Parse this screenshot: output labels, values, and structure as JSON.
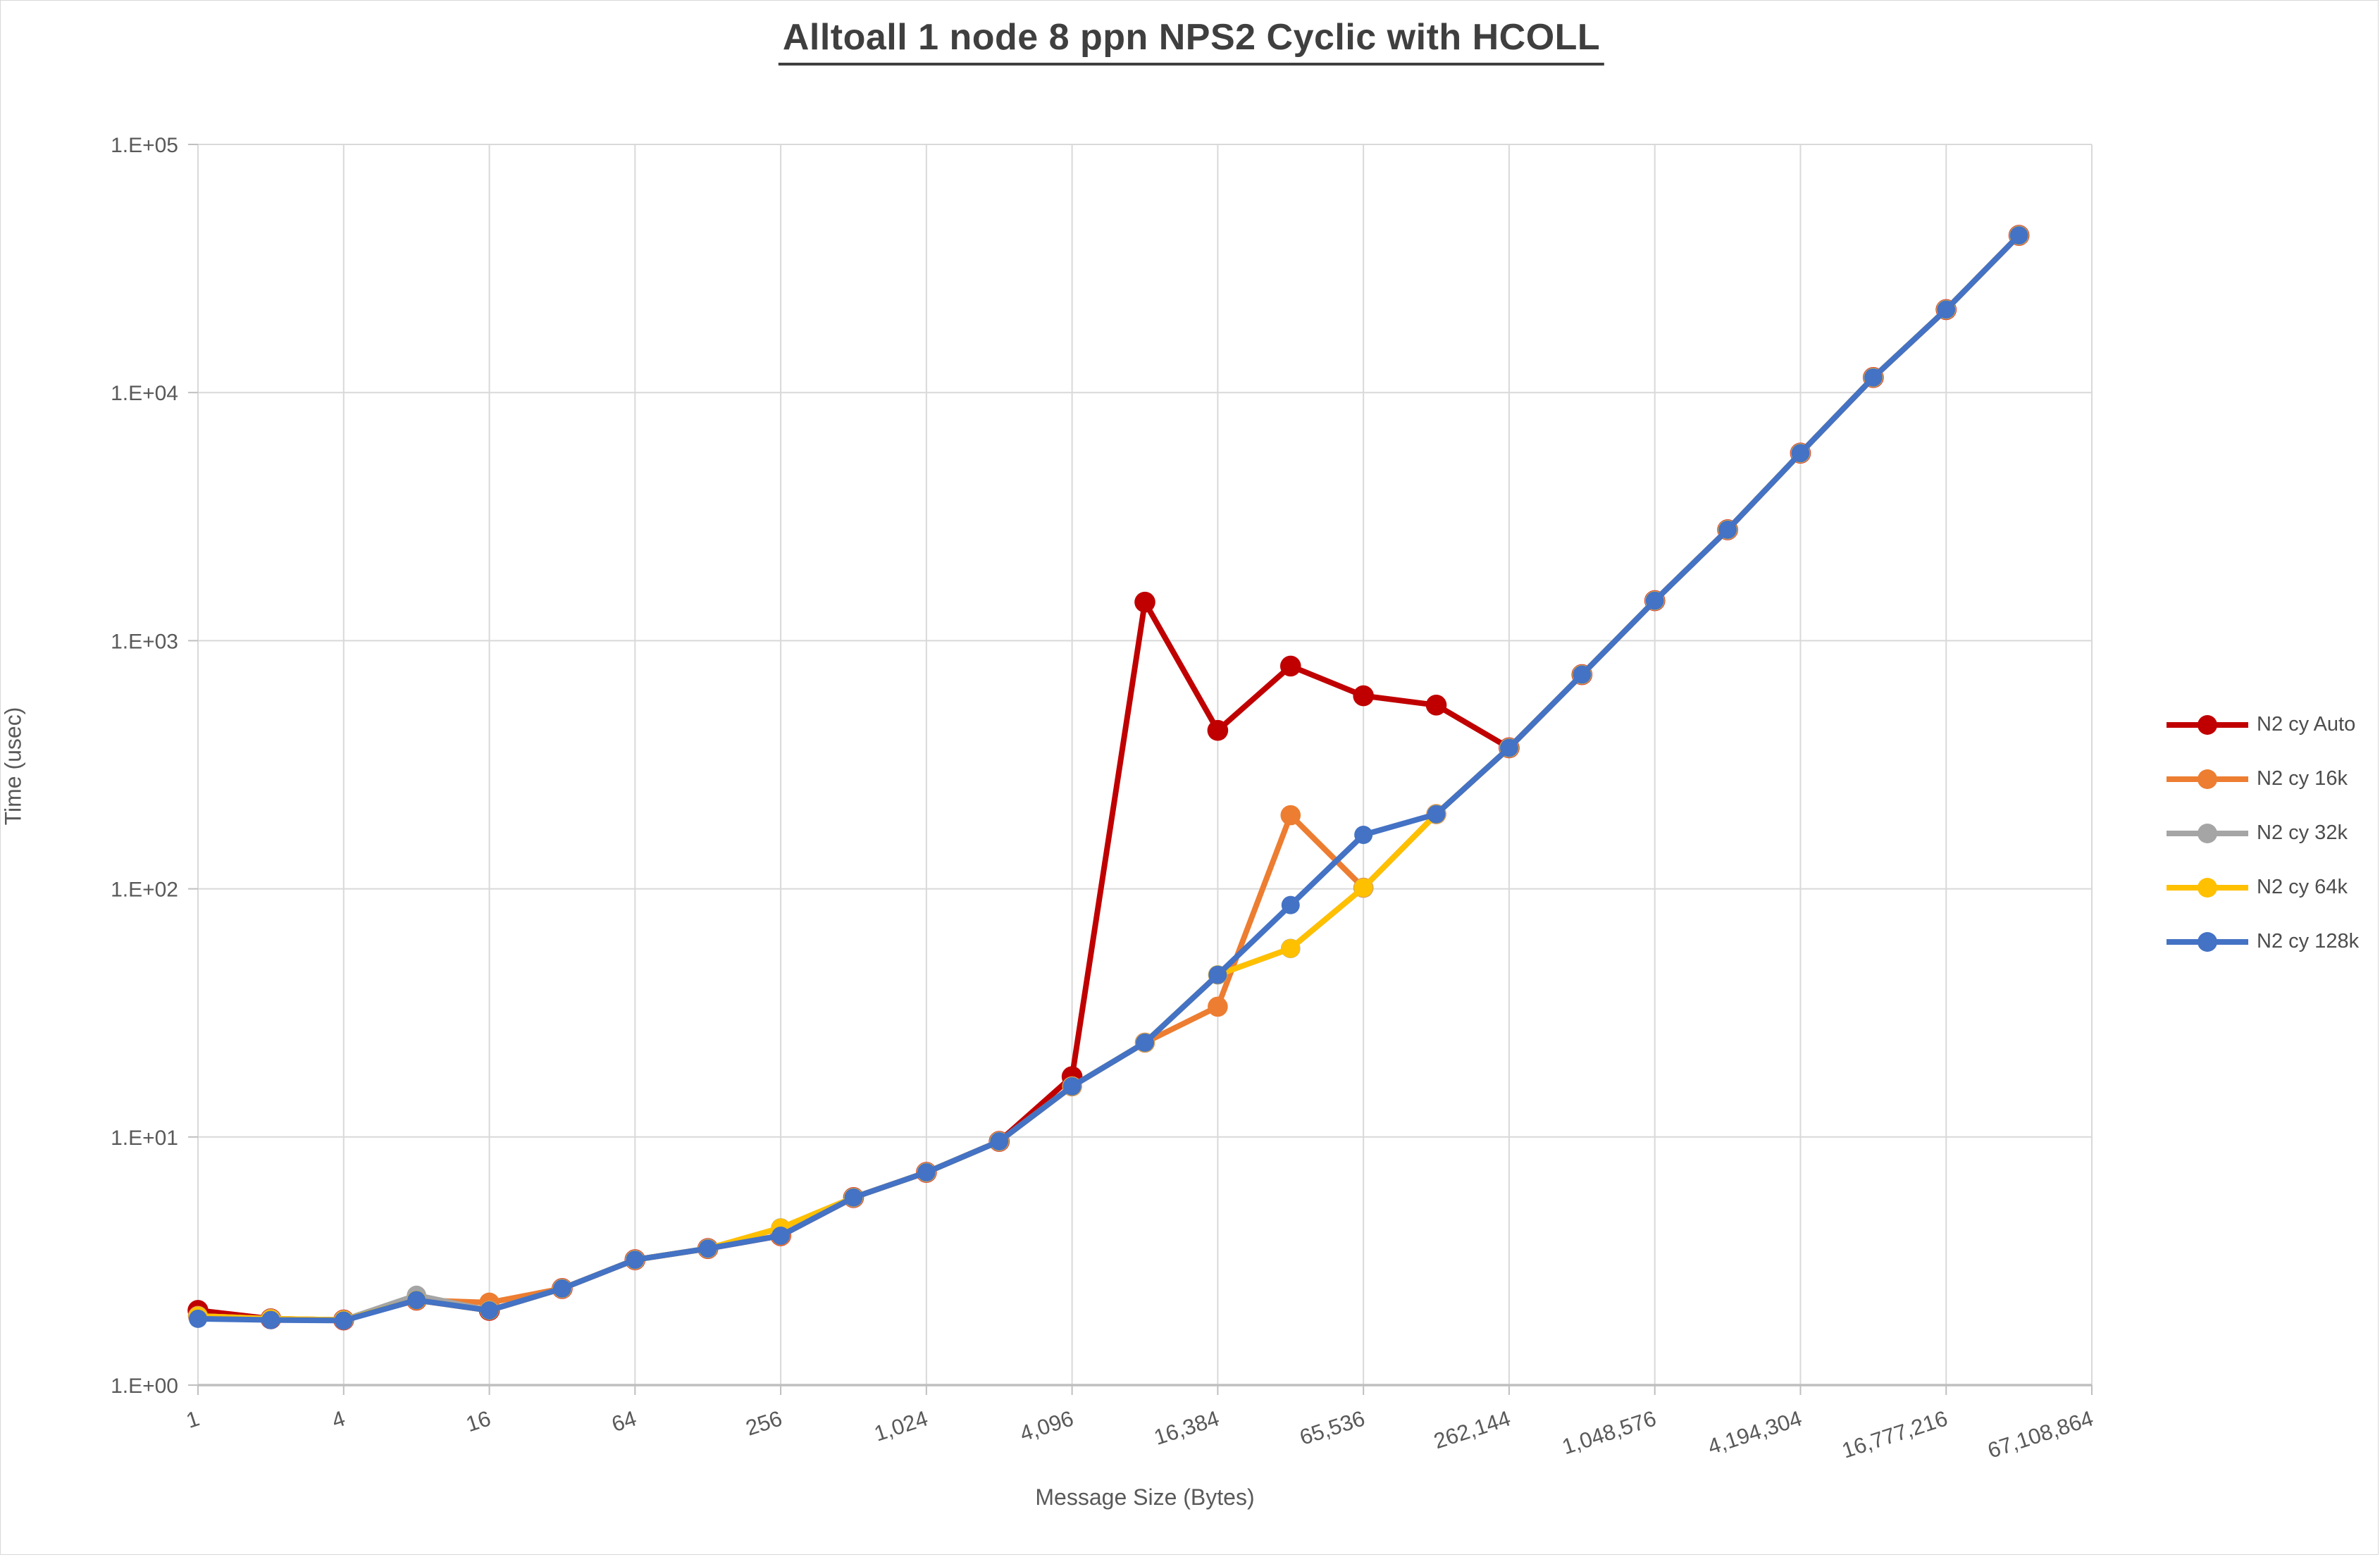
{
  "title": "Alltoall 1 node 8 ppn NPS2 Cyclic with HCOLL",
  "axes": {
    "x_title": "Message Size (Bytes)",
    "y_title": "Time (usec)"
  },
  "chart_data": {
    "type": "line",
    "title": "Alltoall 1 node 8 ppn NPS2 Cyclic with HCOLL",
    "xlabel": "Message Size (Bytes)",
    "ylabel": "Time (usec)",
    "x_scale": "log2",
    "y_scale": "log10",
    "xlim": [
      1,
      67108864
    ],
    "ylim": [
      1,
      100000
    ],
    "grid": true,
    "legend_position": "right",
    "x_tick_values": [
      1,
      4,
      16,
      64,
      256,
      1024,
      4096,
      16384,
      65536,
      262144,
      1048576,
      4194304,
      16777216,
      67108864
    ],
    "x_tick_labels": [
      "1",
      "4",
      "16",
      "64",
      "256",
      "1,024",
      "4,096",
      "16,384",
      "65,536",
      "262,144",
      "1,048,576",
      "4,194,304",
      "16,777,216",
      "67,108,864"
    ],
    "y_tick_values": [
      1,
      10,
      100,
      1000,
      10000,
      100000
    ],
    "y_tick_labels": [
      "1.E+00",
      "1.E+01",
      "1.E+02",
      "1.E+03",
      "1.E+04",
      "1.E+05"
    ],
    "x": [
      1,
      2,
      4,
      8,
      16,
      32,
      64,
      128,
      256,
      512,
      1024,
      2048,
      4096,
      8192,
      16384,
      32768,
      65536,
      131072,
      262144,
      524288,
      1048576,
      2097152,
      4194304,
      8388608,
      16777216,
      33554432
    ],
    "series": [
      {
        "name": "N2 cy Auto",
        "color": "#C00000",
        "values": [
          2.0,
          1.85,
          1.83,
          2.2,
          2.0,
          2.45,
          3.2,
          3.55,
          4.0,
          5.7,
          7.2,
          9.6,
          17.5,
          1430,
          435,
          790,
          600,
          550,
          370,
          730,
          1450,
          2800,
          5700,
          11500,
          21600,
          43000
        ]
      },
      {
        "name": "N2 cy 16k",
        "color": "#ED7D31",
        "values": [
          1.9,
          1.85,
          1.83,
          2.2,
          2.15,
          2.45,
          3.2,
          3.55,
          4.0,
          5.7,
          7.2,
          9.6,
          16,
          24,
          33.5,
          198,
          101,
          200,
          370,
          730,
          1450,
          2800,
          5700,
          11500,
          21600,
          43000
        ]
      },
      {
        "name": "N2 cy 32k",
        "color": "#A5A5A5",
        "values": [
          1.9,
          1.85,
          1.83,
          2.3,
          2.0,
          2.45,
          3.2,
          3.55,
          4.3,
          5.7,
          7.2,
          9.6,
          16,
          24,
          45,
          57.5,
          101,
          200,
          370,
          730,
          1450,
          2800,
          5700,
          11500,
          21600,
          43000
        ]
      },
      {
        "name": "N2 cy 64k",
        "color": "#FFC000",
        "values": [
          1.9,
          1.85,
          1.83,
          2.2,
          2.0,
          2.45,
          3.2,
          3.55,
          4.3,
          5.7,
          7.2,
          9.6,
          16,
          24,
          45,
          57.5,
          101,
          200,
          370,
          730,
          1450,
          2800,
          5700,
          11500,
          21600,
          43000
        ]
      },
      {
        "name": "N2 cy 128k",
        "color": "#4472C4",
        "values": [
          1.85,
          1.83,
          1.82,
          2.2,
          2.0,
          2.45,
          3.2,
          3.55,
          4.0,
          5.7,
          7.2,
          9.6,
          16,
          24,
          45,
          86,
          165,
          200,
          370,
          730,
          1450,
          2800,
          5700,
          11500,
          21600,
          43000
        ]
      }
    ],
    "style": {
      "gridline_color": "#D9D9D9",
      "axis_line_color": "#BFBFBF",
      "tick_label_color": "#595959",
      "title_color": "#3F3F3F",
      "background": "#FFFFFF"
    }
  }
}
